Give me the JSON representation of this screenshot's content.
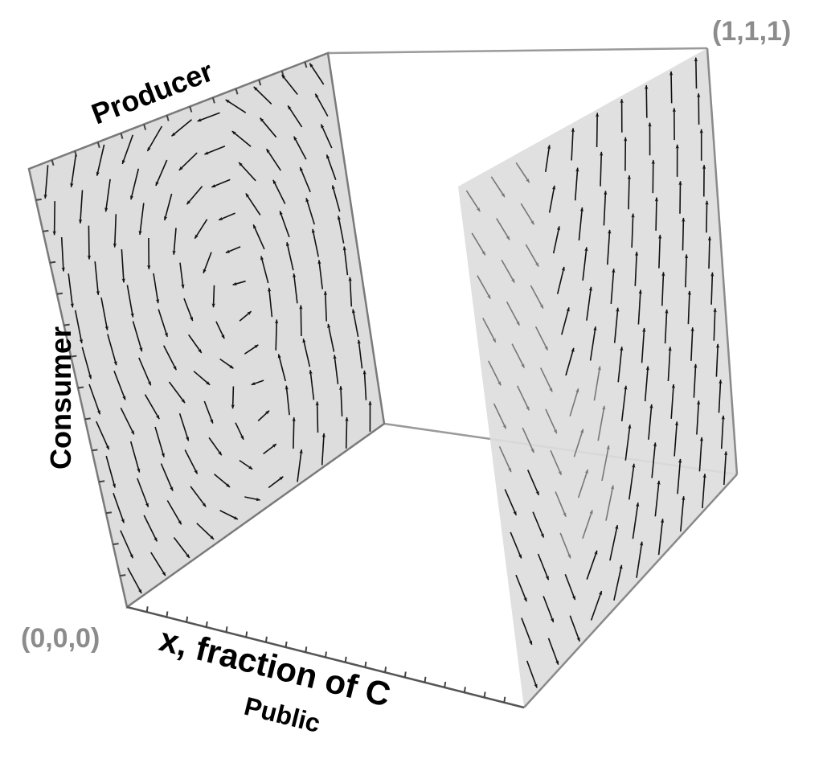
{
  "labels": {
    "origin": "(0,0,0)",
    "corner": "(1,1,1)",
    "axis_x": "x, fraction of C",
    "axis_public": "Public",
    "axis_producer": "Producer",
    "axis_consumer": "Consumer"
  },
  "colors": {
    "face_fill": "#dddddd",
    "edge": "#8a8a8a",
    "arrow": "#111111",
    "arrow_light": "#777777",
    "label_grey": "#8c8c8c",
    "label_dark": "#000000"
  }
}
